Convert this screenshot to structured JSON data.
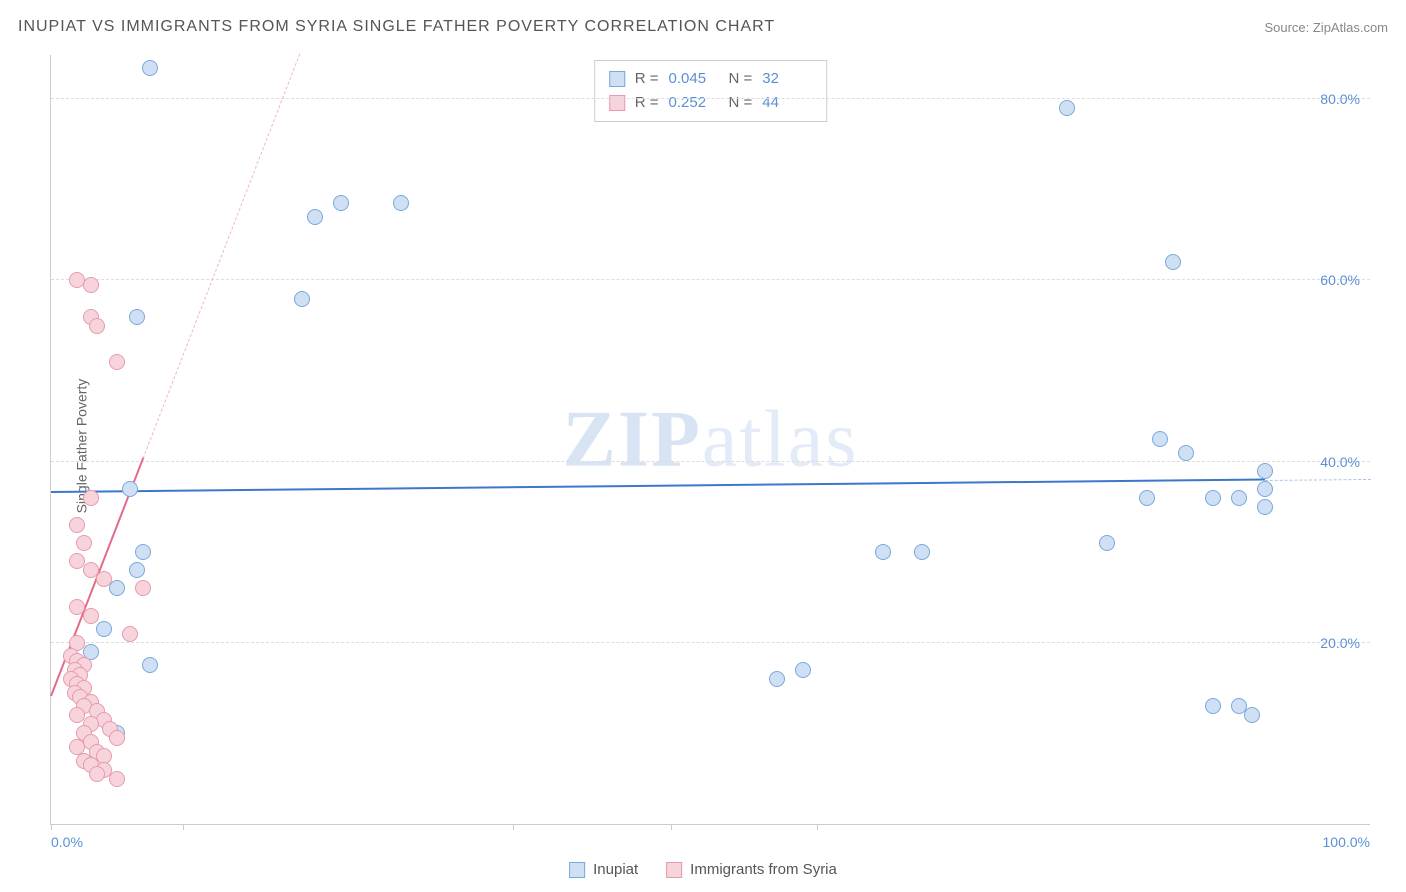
{
  "title": "INUPIAT VS IMMIGRANTS FROM SYRIA SINGLE FATHER POVERTY CORRELATION CHART",
  "source": "Source: ZipAtlas.com",
  "y_axis_label": "Single Father Poverty",
  "watermark_bold": "ZIP",
  "watermark_light": "atlas",
  "chart": {
    "type": "scatter",
    "xlim": [
      0,
      100
    ],
    "ylim": [
      0,
      85
    ],
    "x_ticks": [
      0,
      10,
      35,
      47,
      58
    ],
    "x_tick_labels": {
      "0": "0.0%",
      "100": "100.0%"
    },
    "y_ticks": [
      20,
      40,
      60,
      80
    ],
    "y_tick_labels": [
      "20.0%",
      "40.0%",
      "60.0%",
      "80.0%"
    ],
    "background_color": "#ffffff",
    "grid_color": "#dddddd",
    "point_radius": 8,
    "series": [
      {
        "name": "Inupiat",
        "fill": "#cfe0f4",
        "stroke": "#7aa8dd",
        "trend_color": "#3b78c9",
        "trend_dash_color": "#a9c6ea",
        "trend_y_at_x0": 36.5,
        "trend_y_at_x100": 38.0,
        "R": "0.045",
        "N": "32",
        "points": [
          [
            7.5,
            83.5
          ],
          [
            20,
            67
          ],
          [
            22,
            68.5
          ],
          [
            26.5,
            68.5
          ],
          [
            19,
            58
          ],
          [
            6.5,
            56
          ],
          [
            85,
            62
          ],
          [
            77,
            79
          ],
          [
            6,
            37
          ],
          [
            7,
            30
          ],
          [
            6.5,
            28
          ],
          [
            4,
            21.5
          ],
          [
            7.5,
            17.5
          ],
          [
            5,
            10
          ],
          [
            5,
            26
          ],
          [
            3,
            19
          ],
          [
            55,
            16
          ],
          [
            57,
            17
          ],
          [
            63,
            30
          ],
          [
            66,
            30
          ],
          [
            80,
            31
          ],
          [
            83,
            36
          ],
          [
            84,
            42.5
          ],
          [
            86,
            41
          ],
          [
            88,
            36
          ],
          [
            90,
            36
          ],
          [
            92,
            35
          ],
          [
            92,
            39
          ],
          [
            88,
            13
          ],
          [
            90,
            13
          ],
          [
            91,
            12
          ],
          [
            92,
            37
          ]
        ]
      },
      {
        "name": "Immigrants from Syria",
        "fill": "#f7d4db",
        "stroke": "#e89aac",
        "trend_color": "#e36b88",
        "trend_dash_color": "#f1b5c3",
        "trend_y_at_x0": 14,
        "trend_y_at_x100": 390,
        "R": "0.252",
        "N": "44",
        "points": [
          [
            2,
            60
          ],
          [
            3,
            59.5
          ],
          [
            3,
            56
          ],
          [
            3.5,
            55
          ],
          [
            5,
            51
          ],
          [
            3,
            36
          ],
          [
            2,
            33
          ],
          [
            2.5,
            31
          ],
          [
            2,
            29
          ],
          [
            3,
            28
          ],
          [
            4,
            27
          ],
          [
            7,
            26
          ],
          [
            2,
            24
          ],
          [
            3,
            23
          ],
          [
            6,
            21
          ],
          [
            2,
            20
          ],
          [
            1.5,
            18.5
          ],
          [
            2,
            18
          ],
          [
            2.5,
            17.5
          ],
          [
            1.8,
            17
          ],
          [
            2.2,
            16.5
          ],
          [
            1.5,
            16
          ],
          [
            2,
            15.5
          ],
          [
            2.5,
            15
          ],
          [
            1.8,
            14.5
          ],
          [
            2.2,
            14
          ],
          [
            3,
            13.5
          ],
          [
            2.5,
            13
          ],
          [
            3.5,
            12.5
          ],
          [
            2,
            12
          ],
          [
            4,
            11.5
          ],
          [
            3,
            11
          ],
          [
            4.5,
            10.5
          ],
          [
            2.5,
            10
          ],
          [
            5,
            9.5
          ],
          [
            3,
            9
          ],
          [
            2,
            8.5
          ],
          [
            3.5,
            8
          ],
          [
            4,
            7.5
          ],
          [
            2.5,
            7
          ],
          [
            3,
            6.5
          ],
          [
            4,
            6
          ],
          [
            3.5,
            5.5
          ],
          [
            5,
            5
          ]
        ]
      }
    ]
  },
  "legend_top": [
    {
      "swatch_fill": "#cfe0f4",
      "swatch_stroke": "#7aa8dd",
      "r_label": "R =",
      "r_val": "0.045",
      "n_label": "N =",
      "n_val": "32"
    },
    {
      "swatch_fill": "#f7d4db",
      "swatch_stroke": "#e89aac",
      "r_label": "R =",
      "r_val": "0.252",
      "n_label": "N =",
      "n_val": "44"
    }
  ],
  "legend_bottom": [
    {
      "swatch_fill": "#cfe0f4",
      "swatch_stroke": "#7aa8dd",
      "label": "Inupiat"
    },
    {
      "swatch_fill": "#f7d4db",
      "swatch_stroke": "#e89aac",
      "label": "Immigrants from Syria"
    }
  ]
}
